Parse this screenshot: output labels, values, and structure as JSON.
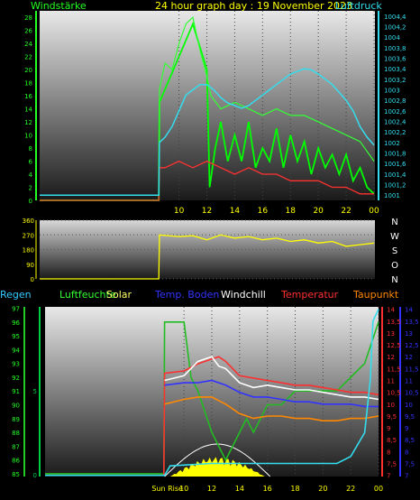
{
  "header": {
    "left_label": "Windstärke",
    "title": "24 hour graph day : 19 November 2023",
    "right_label": "Luftdruck"
  },
  "colors": {
    "wind": "#00ff00",
    "gust": "#33ff33",
    "pressure": "#33ddee",
    "winddir": "#ffff00",
    "temp": "#ff3030",
    "dew": "#ff8800",
    "windchill": "#ffffff",
    "soil": "#3333ff",
    "humidity": "#22bb22",
    "rain": "#00cc44",
    "solar": "#ffff00",
    "solar_curve": "#ffffff",
    "cyan_line": "#33ddee"
  },
  "legend": {
    "rain": "Regen",
    "humidity": "Luftfeuchte",
    "solar": "Solar",
    "soil": "Temp. Boden",
    "windchill": "Windchill",
    "temp": "Temperatur",
    "dew": "Taupunkt"
  },
  "compass": [
    "N",
    "W",
    "S",
    "O",
    "N"
  ],
  "sunrise_label": "Sun Rise",
  "chart_data": [
    {
      "type": "line",
      "x_ticks": [
        "10",
        "12",
        "14",
        "16",
        "18",
        "20",
        "22",
        "00"
      ],
      "y_left_ticks": [
        "0",
        "2",
        "4",
        "6",
        "8",
        "10",
        "12",
        "14",
        "16",
        "18",
        "20",
        "22",
        "24",
        "26",
        "28"
      ],
      "y_right_ticks": [
        "1001",
        "1001,2",
        "1001,4",
        "1001,6",
        "1001,8",
        "1002",
        "1002,2",
        "1002,4",
        "1002,6",
        "1002,8",
        "1003",
        "1003,2",
        "1003,4",
        "1003,6",
        "1003,8",
        "1004",
        "1004,2",
        "1004,4"
      ],
      "ylim_left": [
        0,
        29
      ],
      "ylim_right": [
        1000.9,
        1004.5
      ],
      "series": [
        {
          "key": "wind",
          "x": [
            0,
            8.55,
            8.6,
            9.2,
            10.0,
            11.0,
            12.0,
            12.2,
            12.6,
            13.0,
            13.5,
            14.0,
            14.5,
            15.0,
            15.5,
            16.0,
            16.5,
            17.0,
            17.5,
            18.0,
            18.5,
            19.0,
            19.5,
            20.0,
            20.5,
            21.0,
            21.5,
            22.0,
            22.5,
            23.0,
            23.5,
            24.0
          ],
          "y": [
            0,
            0,
            15,
            18,
            22,
            27,
            20,
            2,
            8,
            12,
            6,
            10,
            6,
            12,
            5,
            8,
            6,
            11,
            5,
            10,
            6,
            9,
            4,
            8,
            5,
            7,
            4,
            7,
            3,
            5,
            2,
            1
          ]
        },
        {
          "key": "gust",
          "x": [
            0,
            8.55,
            8.6,
            9.0,
            9.5,
            10.0,
            10.5,
            11.0,
            11.5,
            12.0,
            12.3,
            13.0,
            14.0,
            15.0,
            16.0,
            17.0,
            18.0,
            19.0,
            20.0,
            21.0,
            22.0,
            23.0,
            24.0
          ],
          "y": [
            0,
            0,
            17,
            21,
            20,
            24,
            27,
            28,
            23,
            19,
            16,
            14,
            15,
            14,
            13,
            14,
            13,
            13,
            12,
            11,
            10,
            9,
            6
          ]
        },
        {
          "key": "temp_line",
          "x": [
            0,
            8.55,
            8.6,
            9.0,
            10.0,
            11.0,
            12.0,
            13.0,
            14.0,
            15.0,
            16.0,
            17.0,
            18.0,
            19.0,
            20.0,
            21.0,
            22.0,
            23.0,
            24.0
          ],
          "y": [
            0,
            0,
            5,
            5,
            6,
            5,
            6,
            5,
            4,
            5,
            4,
            4,
            3,
            3,
            3,
            2,
            2,
            1,
            1
          ]
        },
        {
          "key": "pressure",
          "axis": "right",
          "x": [
            0,
            8.55,
            8.6,
            9.0,
            9.5,
            10.0,
            10.5,
            11.0,
            11.5,
            12.0,
            12.5,
            13.0,
            13.5,
            14.0,
            14.5,
            15.0,
            15.5,
            16.0,
            16.5,
            17.0,
            17.5,
            18.0,
            18.5,
            19.0,
            19.5,
            20.0,
            20.5,
            21.0,
            21.5,
            22.0,
            22.5,
            23.0,
            23.5,
            24.0
          ],
          "y": [
            1001.0,
            1001.0,
            1002.0,
            1002.1,
            1002.3,
            1002.6,
            1002.9,
            1003.0,
            1003.1,
            1003.1,
            1003.0,
            1002.85,
            1002.75,
            1002.7,
            1002.65,
            1002.7,
            1002.8,
            1002.9,
            1003.0,
            1003.1,
            1003.2,
            1003.3,
            1003.35,
            1003.4,
            1003.38,
            1003.3,
            1003.2,
            1003.1,
            1002.95,
            1002.8,
            1002.6,
            1002.3,
            1002.1,
            1001.95
          ]
        }
      ]
    },
    {
      "type": "line",
      "y_ticks": [
        "0",
        "90",
        "180",
        "270",
        "360"
      ],
      "ylim": [
        0,
        360
      ],
      "series": [
        {
          "key": "winddir",
          "x": [
            0,
            8.55,
            8.6,
            10.0,
            11.0,
            12.0,
            13.0,
            14.0,
            15.0,
            16.0,
            17.0,
            18.0,
            19.0,
            20.0,
            21.0,
            22.0,
            23.0,
            24.0
          ],
          "y": [
            0,
            0,
            270,
            260,
            265,
            240,
            270,
            250,
            260,
            240,
            250,
            230,
            240,
            220,
            230,
            200,
            210,
            220
          ]
        }
      ]
    },
    {
      "type": "line",
      "x_ticks": [
        "Sun Rise",
        "10",
        "12",
        "14",
        "16",
        "18",
        "20",
        "22",
        "00"
      ],
      "y_left_ticks": [
        "85",
        "86",
        "87",
        "88",
        "89",
        "90",
        "91",
        "92",
        "93",
        "94",
        "95",
        "96",
        "97"
      ],
      "y_rain_ticks": [
        "0",
        "5"
      ],
      "y_right_ticks": [
        "7",
        "7,5",
        "8",
        "8,5",
        "9",
        "9,5",
        "10",
        "10,5",
        "11",
        "11,5",
        "12",
        "12,5",
        "13",
        "13,5",
        "14"
      ],
      "ylim_left": [
        84.8,
        97.1
      ],
      "ylim_right": [
        6.95,
        14.1
      ],
      "series": [
        {
          "key": "humidity",
          "x": [
            0,
            8.55,
            8.6,
            10.0,
            10.5,
            11.0,
            12.0,
            12.5,
            13.0,
            13.5,
            14.0,
            14.5,
            15.0,
            15.5,
            16.0,
            17.0,
            18.0,
            19.0,
            20.0,
            21.0,
            22.0,
            23.0,
            24.0
          ],
          "y": [
            85,
            85,
            96,
            96,
            92,
            91,
            88,
            87,
            86,
            87,
            88,
            89,
            88,
            89,
            90,
            90,
            91,
            91,
            91,
            91,
            92,
            93,
            96
          ]
        },
        {
          "key": "temp",
          "axis": "right",
          "x": [
            0,
            8.55,
            8.6,
            10.0,
            11.0,
            12.0,
            12.5,
            13.0,
            14.0,
            15.0,
            16.0,
            17.0,
            18.0,
            19.0,
            20.0,
            21.0,
            22.0,
            23.0,
            24.0
          ],
          "y": [
            7,
            7,
            11.3,
            11.4,
            11.7,
            11.9,
            12.0,
            11.8,
            11.2,
            11.1,
            11.0,
            10.9,
            10.8,
            10.8,
            10.7,
            10.6,
            10.5,
            10.5,
            10.4
          ]
        },
        {
          "key": "windchill",
          "axis": "right",
          "x": [
            8.6,
            10.0,
            11.0,
            12.0,
            12.5,
            13.0,
            14.0,
            15.0,
            16.0,
            17.0,
            18.0,
            19.0,
            20.0,
            21.0,
            22.0,
            23.0,
            24.0
          ],
          "y": [
            11.0,
            11.2,
            11.8,
            12.0,
            11.6,
            11.5,
            10.9,
            10.7,
            10.8,
            10.7,
            10.6,
            10.6,
            10.5,
            10.4,
            10.3,
            10.3,
            10.2
          ]
        },
        {
          "key": "soil",
          "axis": "right",
          "x": [
            8.6,
            10.0,
            11.0,
            12.0,
            13.0,
            14.0,
            15.0,
            16.0,
            17.0,
            18.0,
            19.0,
            20.0,
            21.0,
            22.0,
            23.0,
            24.0
          ],
          "y": [
            10.8,
            10.9,
            10.9,
            11.0,
            10.8,
            10.5,
            10.3,
            10.3,
            10.2,
            10.1,
            10.1,
            10.0,
            10.0,
            10.0,
            9.9,
            9.9
          ]
        },
        {
          "key": "dew",
          "axis": "right",
          "x": [
            8.6,
            10.0,
            11.0,
            12.0,
            13.0,
            14.0,
            15.0,
            16.0,
            17.0,
            18.0,
            19.0,
            20.0,
            21.0,
            22.0,
            23.0,
            24.0
          ],
          "y": [
            10.0,
            10.2,
            10.3,
            10.3,
            10.0,
            9.6,
            9.4,
            9.5,
            9.5,
            9.4,
            9.4,
            9.3,
            9.3,
            9.4,
            9.4,
            9.5
          ]
        },
        {
          "key": "cyan_line",
          "axis": "right",
          "x": [
            0,
            8.6,
            9.0,
            12.0,
            16.0,
            19.0,
            21.0,
            22.0,
            23.0,
            23.4,
            23.6,
            24.0
          ],
          "y": [
            7,
            7,
            7.4,
            7.5,
            7.5,
            7.5,
            7.5,
            7.8,
            8.8,
            11.0,
            13.5,
            14.0
          ]
        }
      ]
    }
  ]
}
